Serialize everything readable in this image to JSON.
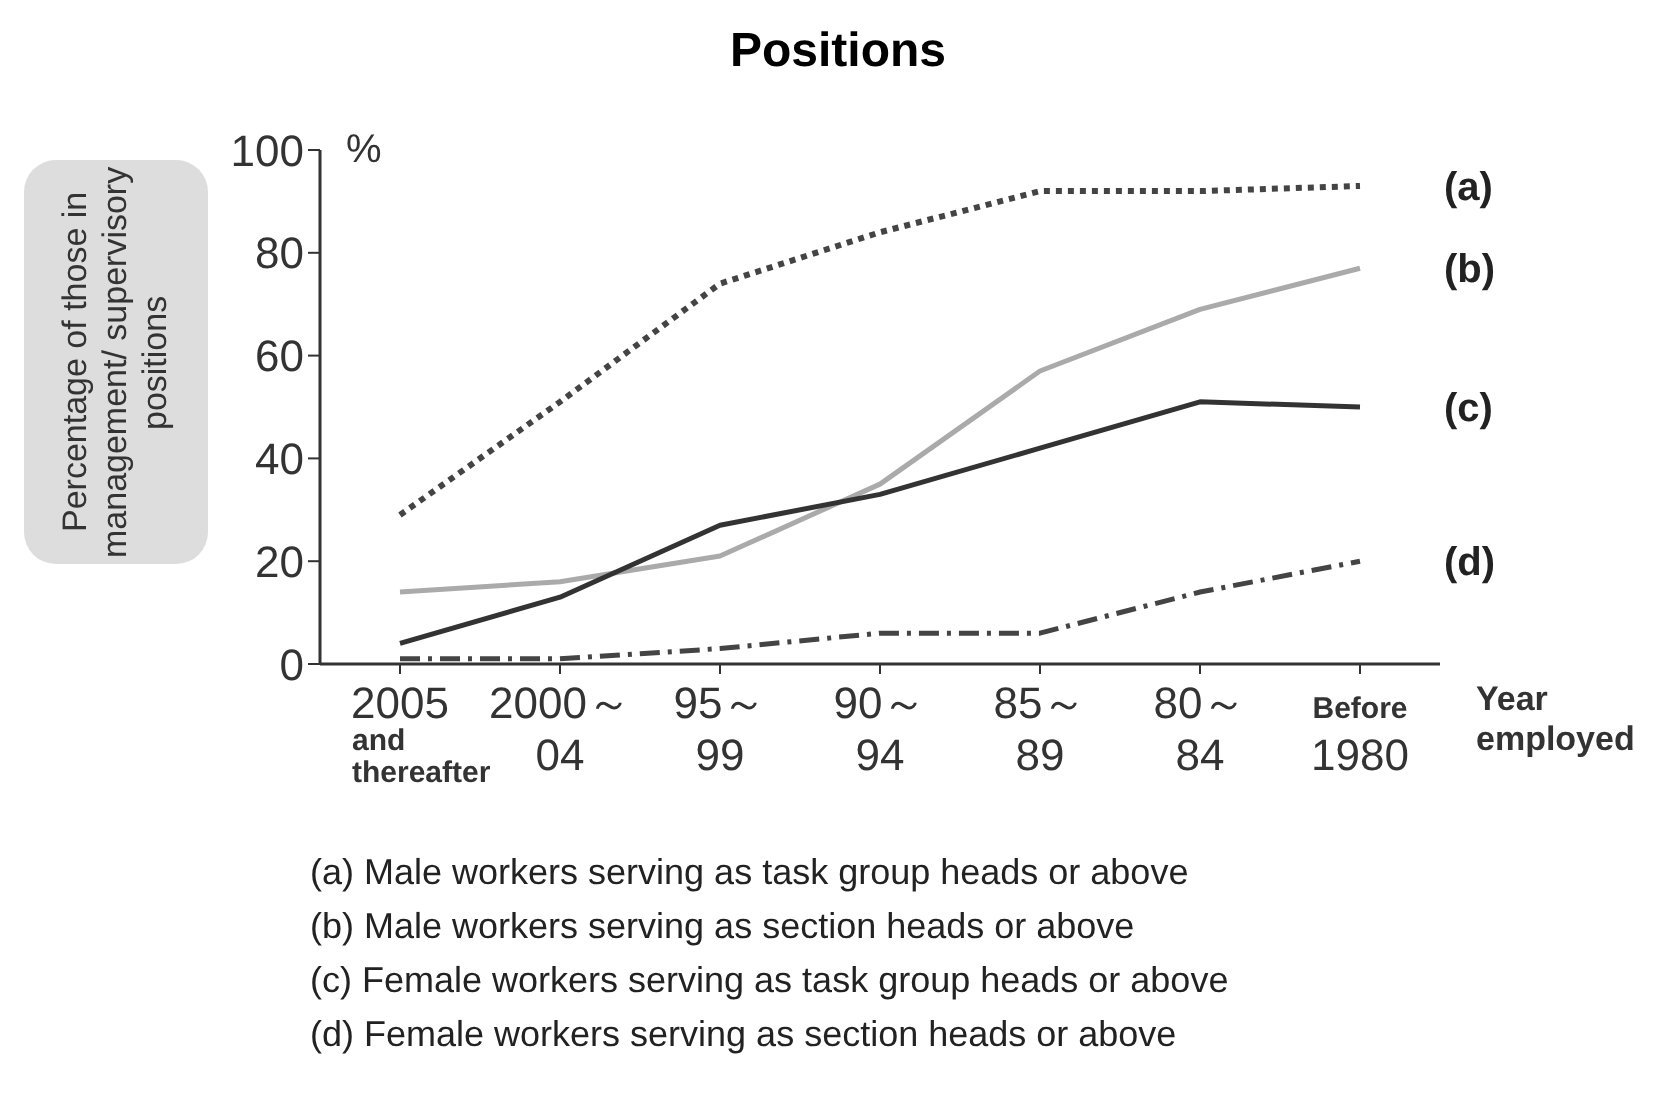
{
  "chart_data": {
    "type": "line",
    "title": "Positions",
    "ylabel": "Percentage of those in management/ supervisory positions",
    "xlabel": "Year employed",
    "categories": [
      "2005\nand\nthereafter",
      "2000～\n04",
      "95～\n99",
      "90～\n94",
      "85～\n89",
      "80～\n84",
      "Before\n1980"
    ],
    "ylim": [
      0,
      100
    ],
    "yticks": [
      0,
      20,
      40,
      60,
      80,
      100
    ],
    "grid": false,
    "legend": false,
    "marker": "none",
    "series": [
      {
        "name": "(a)",
        "color": "#444444",
        "line_style": "dotted",
        "values": [
          29,
          51,
          74,
          84,
          92,
          92,
          93
        ]
      },
      {
        "name": "(b)",
        "color": "#aaaaaa",
        "line_style": "solid",
        "values": [
          14,
          16,
          21,
          35,
          57,
          69,
          77
        ]
      },
      {
        "name": "(c)",
        "color": "#333333",
        "line_style": "solid",
        "values": [
          4,
          13,
          27,
          33,
          42,
          51,
          50
        ]
      },
      {
        "name": "(d)",
        "color": "#444444",
        "line_style": "dashed",
        "values": [
          1,
          1,
          3,
          6,
          6,
          14,
          20
        ]
      }
    ],
    "annotations": [
      "%",
      "(a) Male workers serving as task group heads or above",
      "(b) Male workers serving as section heads or above",
      "(c) Female workers serving as task group heads or above",
      "(d) Female workers serving as section heads or above"
    ]
  }
}
